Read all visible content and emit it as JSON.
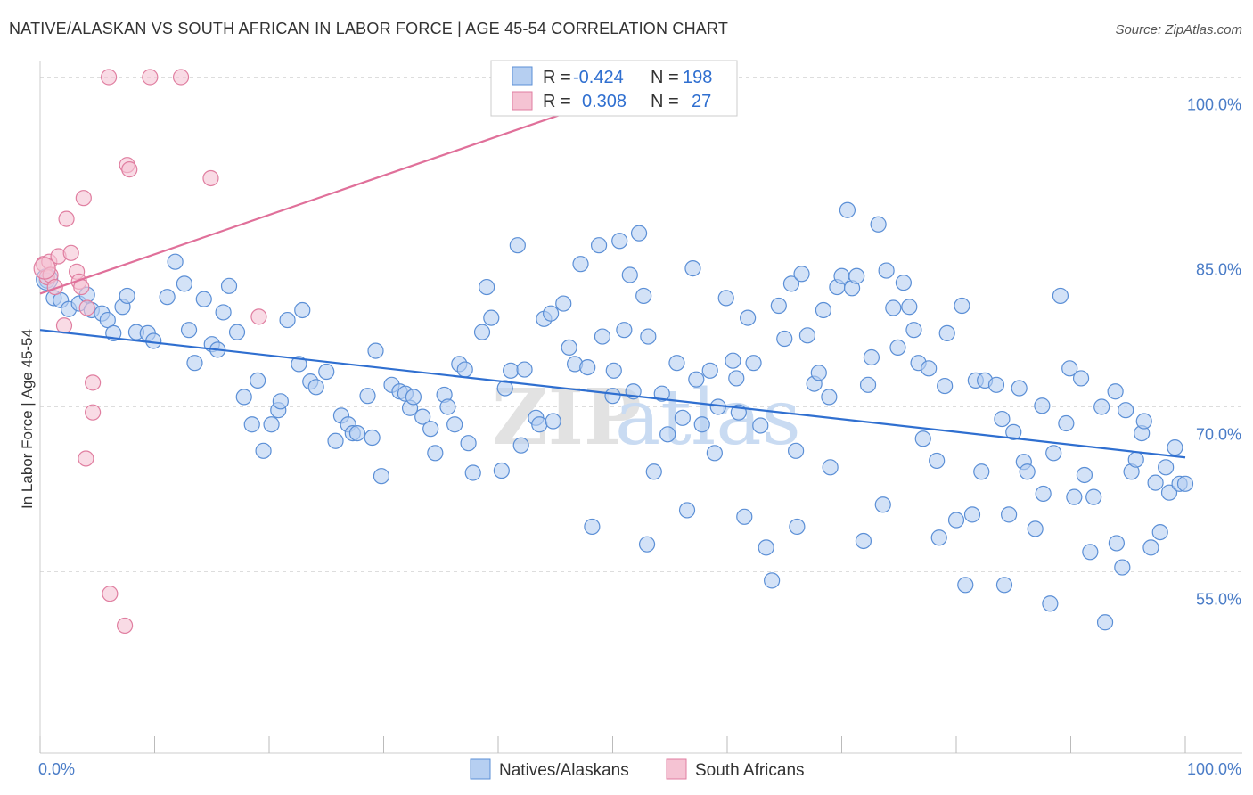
{
  "title": "NATIVE/ALASKAN VS SOUTH AFRICAN IN LABOR FORCE | AGE 45-54 CORRELATION CHART",
  "source": "Source: ZipAtlas.com",
  "watermark": {
    "zip": "ZIP",
    "atlas": "atlas"
  },
  "colors": {
    "blue_fill": "#b6cff1",
    "blue_stroke": "#5b8fd6",
    "blue_line": "#2f6fd0",
    "pink_fill": "#f5c3d3",
    "pink_stroke": "#e07ea0",
    "pink_line": "#e0709a",
    "grid": "#dddddd",
    "tick_text": "#4a7cc7"
  },
  "legend": {
    "r_label": "R =",
    "n_label": "N =",
    "rows": [
      {
        "r": "-0.424",
        "n": "198"
      },
      {
        "r": "0.308",
        "n": "27"
      }
    ]
  },
  "chart_data": {
    "type": "scatter",
    "title": "NATIVE/ALASKAN VS SOUTH AFRICAN IN LABOR FORCE | AGE 45-54 CORRELATION CHART",
    "xlabel": "",
    "ylabel": "In Labor Force | Age 45-54",
    "xlim": [
      0,
      100
    ],
    "ylim": [
      38.5,
      101.5
    ],
    "x_tick_labels": [
      "0.0%",
      "100.0%"
    ],
    "y_ticks": [
      55,
      70,
      85,
      100
    ],
    "y_tick_labels": [
      "55.0%",
      "70.0%",
      "85.0%",
      "100.0%"
    ],
    "grid": true,
    "legend_position": "top-center",
    "series": [
      {
        "name": "Natives/Alaskans",
        "color": "#b6cff1",
        "trend": {
          "x": [
            0,
            100
          ],
          "y": [
            77.0,
            65.4
          ]
        },
        "points": [
          [
            0.6,
            81.5
          ],
          [
            1.2,
            79.9
          ],
          [
            1.8,
            79.7
          ],
          [
            2.5,
            78.9
          ],
          [
            3.4,
            79.4
          ],
          [
            4.1,
            80.2
          ],
          [
            4.5,
            78.8
          ],
          [
            5.4,
            78.5
          ],
          [
            5.9,
            77.9
          ],
          [
            6.4,
            76.7
          ],
          [
            7.2,
            79.1
          ],
          [
            7.6,
            80.1
          ],
          [
            8.4,
            76.8
          ],
          [
            9.4,
            76.7
          ],
          [
            9.9,
            76.0
          ],
          [
            11.1,
            80.0
          ],
          [
            11.8,
            83.2
          ],
          [
            12.6,
            81.2
          ],
          [
            13.0,
            77.0
          ],
          [
            13.5,
            74.0
          ],
          [
            14.3,
            79.8
          ],
          [
            15.0,
            75.7
          ],
          [
            15.5,
            75.2
          ],
          [
            16.0,
            78.6
          ],
          [
            16.5,
            81.0
          ],
          [
            17.2,
            76.8
          ],
          [
            17.8,
            70.9
          ],
          [
            18.5,
            68.4
          ],
          [
            19.0,
            72.4
          ],
          [
            19.5,
            66.0
          ],
          [
            20.2,
            68.4
          ],
          [
            20.8,
            69.7
          ],
          [
            21.6,
            77.9
          ],
          [
            22.6,
            73.9
          ],
          [
            22.9,
            78.8
          ],
          [
            23.6,
            72.3
          ],
          [
            24.1,
            71.8
          ],
          [
            25.0,
            73.2
          ],
          [
            25.8,
            66.9
          ],
          [
            26.3,
            69.2
          ],
          [
            26.9,
            68.4
          ],
          [
            27.3,
            67.6
          ],
          [
            27.7,
            67.6
          ],
          [
            28.6,
            71.0
          ],
          [
            29.3,
            75.1
          ],
          [
            29.8,
            63.7
          ],
          [
            30.7,
            72.0
          ],
          [
            31.4,
            71.4
          ],
          [
            31.9,
            71.2
          ],
          [
            32.3,
            69.9
          ],
          [
            32.6,
            70.9
          ],
          [
            33.4,
            69.1
          ],
          [
            34.1,
            68.0
          ],
          [
            34.5,
            65.8
          ],
          [
            35.3,
            71.1
          ],
          [
            35.6,
            70.0
          ],
          [
            36.2,
            68.4
          ],
          [
            36.6,
            73.9
          ],
          [
            37.1,
            73.4
          ],
          [
            37.8,
            64.0
          ],
          [
            38.6,
            76.8
          ],
          [
            39.0,
            80.9
          ],
          [
            39.4,
            78.1
          ],
          [
            40.3,
            64.2
          ],
          [
            40.6,
            71.7
          ],
          [
            41.1,
            73.3
          ],
          [
            41.7,
            84.7
          ],
          [
            42.3,
            73.4
          ],
          [
            43.3,
            69.0
          ],
          [
            43.6,
            68.4
          ],
          [
            44.0,
            78.0
          ],
          [
            44.6,
            78.5
          ],
          [
            44.8,
            68.7
          ],
          [
            45.7,
            79.4
          ],
          [
            46.2,
            75.4
          ],
          [
            46.7,
            73.9
          ],
          [
            47.2,
            83.0
          ],
          [
            47.8,
            73.6
          ],
          [
            48.2,
            59.1
          ],
          [
            48.8,
            84.7
          ],
          [
            49.1,
            76.4
          ],
          [
            50.1,
            73.3
          ],
          [
            50.6,
            85.1
          ],
          [
            51.0,
            77.0
          ],
          [
            51.5,
            82.0
          ],
          [
            51.8,
            71.4
          ],
          [
            52.3,
            85.8
          ],
          [
            52.7,
            80.1
          ],
          [
            53.1,
            76.4
          ],
          [
            53.6,
            64.1
          ],
          [
            54.3,
            71.2
          ],
          [
            54.8,
            67.5
          ],
          [
            55.6,
            74.0
          ],
          [
            56.1,
            69.0
          ],
          [
            56.5,
            60.6
          ],
          [
            57.0,
            82.6
          ],
          [
            57.3,
            72.5
          ],
          [
            57.8,
            68.4
          ],
          [
            58.5,
            73.3
          ],
          [
            58.9,
            65.8
          ],
          [
            59.2,
            70.0
          ],
          [
            59.9,
            79.9
          ],
          [
            60.5,
            74.2
          ],
          [
            60.8,
            72.6
          ],
          [
            61.5,
            60.0
          ],
          [
            61.8,
            78.1
          ],
          [
            62.3,
            74.0
          ],
          [
            62.9,
            68.3
          ],
          [
            63.4,
            57.2
          ],
          [
            63.9,
            54.2
          ],
          [
            64.5,
            79.2
          ],
          [
            65.0,
            76.2
          ],
          [
            65.6,
            81.2
          ],
          [
            66.0,
            66.0
          ],
          [
            66.1,
            59.1
          ],
          [
            66.5,
            82.1
          ],
          [
            67.0,
            76.5
          ],
          [
            67.6,
            72.1
          ],
          [
            68.0,
            73.1
          ],
          [
            68.4,
            78.8
          ],
          [
            68.9,
            70.9
          ],
          [
            69.6,
            80.9
          ],
          [
            70.0,
            81.9
          ],
          [
            70.5,
            87.9
          ],
          [
            70.9,
            80.8
          ],
          [
            71.3,
            81.9
          ],
          [
            71.9,
            57.8
          ],
          [
            72.3,
            72.0
          ],
          [
            72.6,
            74.5
          ],
          [
            73.2,
            86.6
          ],
          [
            73.6,
            61.1
          ],
          [
            73.9,
            82.4
          ],
          [
            74.5,
            79.0
          ],
          [
            74.9,
            75.4
          ],
          [
            75.4,
            81.3
          ],
          [
            75.9,
            79.1
          ],
          [
            76.3,
            77.0
          ],
          [
            76.7,
            74.0
          ],
          [
            77.1,
            67.1
          ],
          [
            77.6,
            73.5
          ],
          [
            78.3,
            65.1
          ],
          [
            78.5,
            58.1
          ],
          [
            79.0,
            71.9
          ],
          [
            79.2,
            76.7
          ],
          [
            80.0,
            59.7
          ],
          [
            80.5,
            79.2
          ],
          [
            80.8,
            53.8
          ],
          [
            81.4,
            60.2
          ],
          [
            81.7,
            72.4
          ],
          [
            82.2,
            64.1
          ],
          [
            82.5,
            72.4
          ],
          [
            83.5,
            72.0
          ],
          [
            84.0,
            68.9
          ],
          [
            84.2,
            53.8
          ],
          [
            84.6,
            60.2
          ],
          [
            85.0,
            67.7
          ],
          [
            85.5,
            71.7
          ],
          [
            85.9,
            65.0
          ],
          [
            86.2,
            64.1
          ],
          [
            86.9,
            58.9
          ],
          [
            87.5,
            70.1
          ],
          [
            87.6,
            62.1
          ],
          [
            88.2,
            52.1
          ],
          [
            88.5,
            65.8
          ],
          [
            89.1,
            80.1
          ],
          [
            89.6,
            68.5
          ],
          [
            89.9,
            73.5
          ],
          [
            90.3,
            61.8
          ],
          [
            90.9,
            72.6
          ],
          [
            91.2,
            63.8
          ],
          [
            91.7,
            56.8
          ],
          [
            92.0,
            61.8
          ],
          [
            92.7,
            70.0
          ],
          [
            93.0,
            50.4
          ],
          [
            93.9,
            71.4
          ],
          [
            94.0,
            57.6
          ],
          [
            94.5,
            55.4
          ],
          [
            94.8,
            69.7
          ],
          [
            95.3,
            64.1
          ],
          [
            95.7,
            65.2
          ],
          [
            96.2,
            67.6
          ],
          [
            96.4,
            68.7
          ],
          [
            97.0,
            57.2
          ],
          [
            97.4,
            63.1
          ],
          [
            97.8,
            58.6
          ],
          [
            98.3,
            64.5
          ],
          [
            98.6,
            62.2
          ],
          [
            99.1,
            66.3
          ],
          [
            99.5,
            63.0
          ],
          [
            100.0,
            63.0
          ],
          [
            50.0,
            71.0
          ],
          [
            37.4,
            66.7
          ],
          [
            29.0,
            67.2
          ],
          [
            21.0,
            70.5
          ],
          [
            61.0,
            69.5
          ],
          [
            42.0,
            66.5
          ],
          [
            53.0,
            57.5
          ],
          [
            69.0,
            64.5
          ]
        ]
      },
      {
        "name": "South Africans",
        "color": "#f5c3d3",
        "trend": {
          "x": [
            0,
            55
          ],
          "y": [
            80.3,
            100.0
          ]
        },
        "points": [
          [
            0.3,
            83.0
          ],
          [
            0.6,
            81.8
          ],
          [
            0.8,
            83.2
          ],
          [
            0.9,
            82.0
          ],
          [
            1.3,
            80.9
          ],
          [
            1.6,
            83.7
          ],
          [
            2.1,
            77.4
          ],
          [
            2.3,
            87.1
          ],
          [
            2.7,
            84.0
          ],
          [
            3.2,
            82.3
          ],
          [
            3.4,
            81.4
          ],
          [
            3.6,
            80.9
          ],
          [
            3.8,
            89.0
          ],
          [
            4.0,
            65.3
          ],
          [
            4.1,
            79.0
          ],
          [
            4.6,
            69.5
          ],
          [
            4.6,
            72.2
          ],
          [
            6.0,
            100.0
          ],
          [
            6.1,
            53.0
          ],
          [
            7.4,
            50.1
          ],
          [
            7.6,
            92.0
          ],
          [
            7.8,
            91.6
          ],
          [
            9.6,
            100.0
          ],
          [
            12.3,
            100.0
          ],
          [
            14.9,
            90.8
          ],
          [
            19.1,
            78.2
          ],
          [
            55.0,
            100.0
          ]
        ]
      }
    ]
  }
}
